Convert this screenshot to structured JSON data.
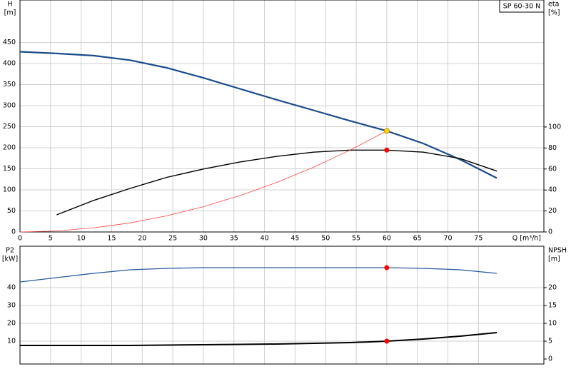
{
  "chart_data": [
    {
      "type": "line",
      "title": "SP 60-30 N",
      "ylabel": "H",
      "yunit": "[m]",
      "y2label": "eta",
      "y2unit": "[%]",
      "xlabel": "Q [m³/h]",
      "xlim": [
        0,
        85.7
      ],
      "xticks": [
        0,
        5,
        10,
        15,
        20,
        25,
        30,
        35,
        40,
        45,
        50,
        55,
        60,
        65,
        70,
        75
      ],
      "ylim": [
        0,
        551
      ],
      "yticks": [
        0,
        50,
        100,
        150,
        200,
        250,
        300,
        350,
        400,
        450
      ],
      "y2lim": [
        0,
        221
      ],
      "y2ticks": [
        0,
        20,
        40,
        60,
        80,
        100
      ],
      "grid": true,
      "series": [
        {
          "color": "#1b4a8c",
          "width": 2.2,
          "x": [
            0,
            6,
            12,
            18,
            24,
            30,
            36,
            42,
            48,
            54,
            60,
            66,
            72,
            78
          ],
          "values": [
            428,
            424,
            419,
            408,
            390,
            366,
            340,
            314,
            289,
            264,
            240,
            210,
            172,
            128
          ]
        },
        {
          "color": "#000000",
          "width": 1.4,
          "axis": "y2",
          "x": [
            6,
            12,
            18,
            24,
            30,
            36,
            42,
            48,
            54,
            60,
            66,
            72,
            78
          ],
          "values": [
            16.3,
            30,
            41.5,
            52,
            60,
            66.7,
            72,
            76,
            78,
            78,
            76,
            70,
            58
          ]
        },
        {
          "color": "#ff4444",
          "width": 0.8,
          "x": [
            0,
            6,
            12,
            18,
            24,
            30,
            36,
            42,
            48,
            54,
            60
          ],
          "values": [
            0,
            2.4,
            9.6,
            21.6,
            38.4,
            60,
            86.4,
            117.6,
            153.6,
            194.4,
            240
          ]
        },
        {
          "color": "#ff0000",
          "marker": true,
          "axis": "y2",
          "x": [
            60
          ],
          "values": [
            78
          ]
        },
        {
          "color": "#ffd700",
          "marker": true,
          "x": [
            60
          ],
          "values": [
            240
          ]
        }
      ]
    },
    {
      "type": "line",
      "ylabel": "P2",
      "yunit": "[kW]",
      "y2label": "NPSH",
      "y2unit": "[m]",
      "xlim": [
        0,
        85.7
      ],
      "ylim": [
        -2.8,
        63.2
      ],
      "yticks": [
        10,
        20,
        30,
        40
      ],
      "y2lim": [
        -1.4,
        31.6
      ],
      "y2ticks": [
        0,
        5,
        10,
        15,
        20
      ],
      "grid": true,
      "series": [
        {
          "color": "#2a5a9a",
          "width": 1.3,
          "x": [
            0,
            6,
            12,
            18,
            24,
            30,
            36,
            42,
            48,
            54,
            60,
            66,
            72,
            78
          ],
          "values": [
            43.2,
            45.6,
            48,
            50,
            50.8,
            51.2,
            51.2,
            51.2,
            51.2,
            51.2,
            51.2,
            50.8,
            50,
            48
          ]
        },
        {
          "color": "#000000",
          "width": 2,
          "axis": "y2",
          "x": [
            0,
            6,
            12,
            18,
            24,
            30,
            36,
            42,
            48,
            54,
            60,
            66,
            72,
            78
          ],
          "values": [
            3.8,
            3.8,
            3.8,
            3.8,
            3.9,
            4,
            4.1,
            4.2,
            4.4,
            4.6,
            5,
            5.6,
            6.4,
            7.4
          ]
        },
        {
          "color": "#ff0000",
          "marker": true,
          "x": [
            60
          ],
          "values": [
            51.2
          ]
        },
        {
          "color": "#ff0000",
          "marker": true,
          "axis": "y2",
          "x": [
            60
          ],
          "values": [
            5
          ]
        }
      ]
    }
  ]
}
